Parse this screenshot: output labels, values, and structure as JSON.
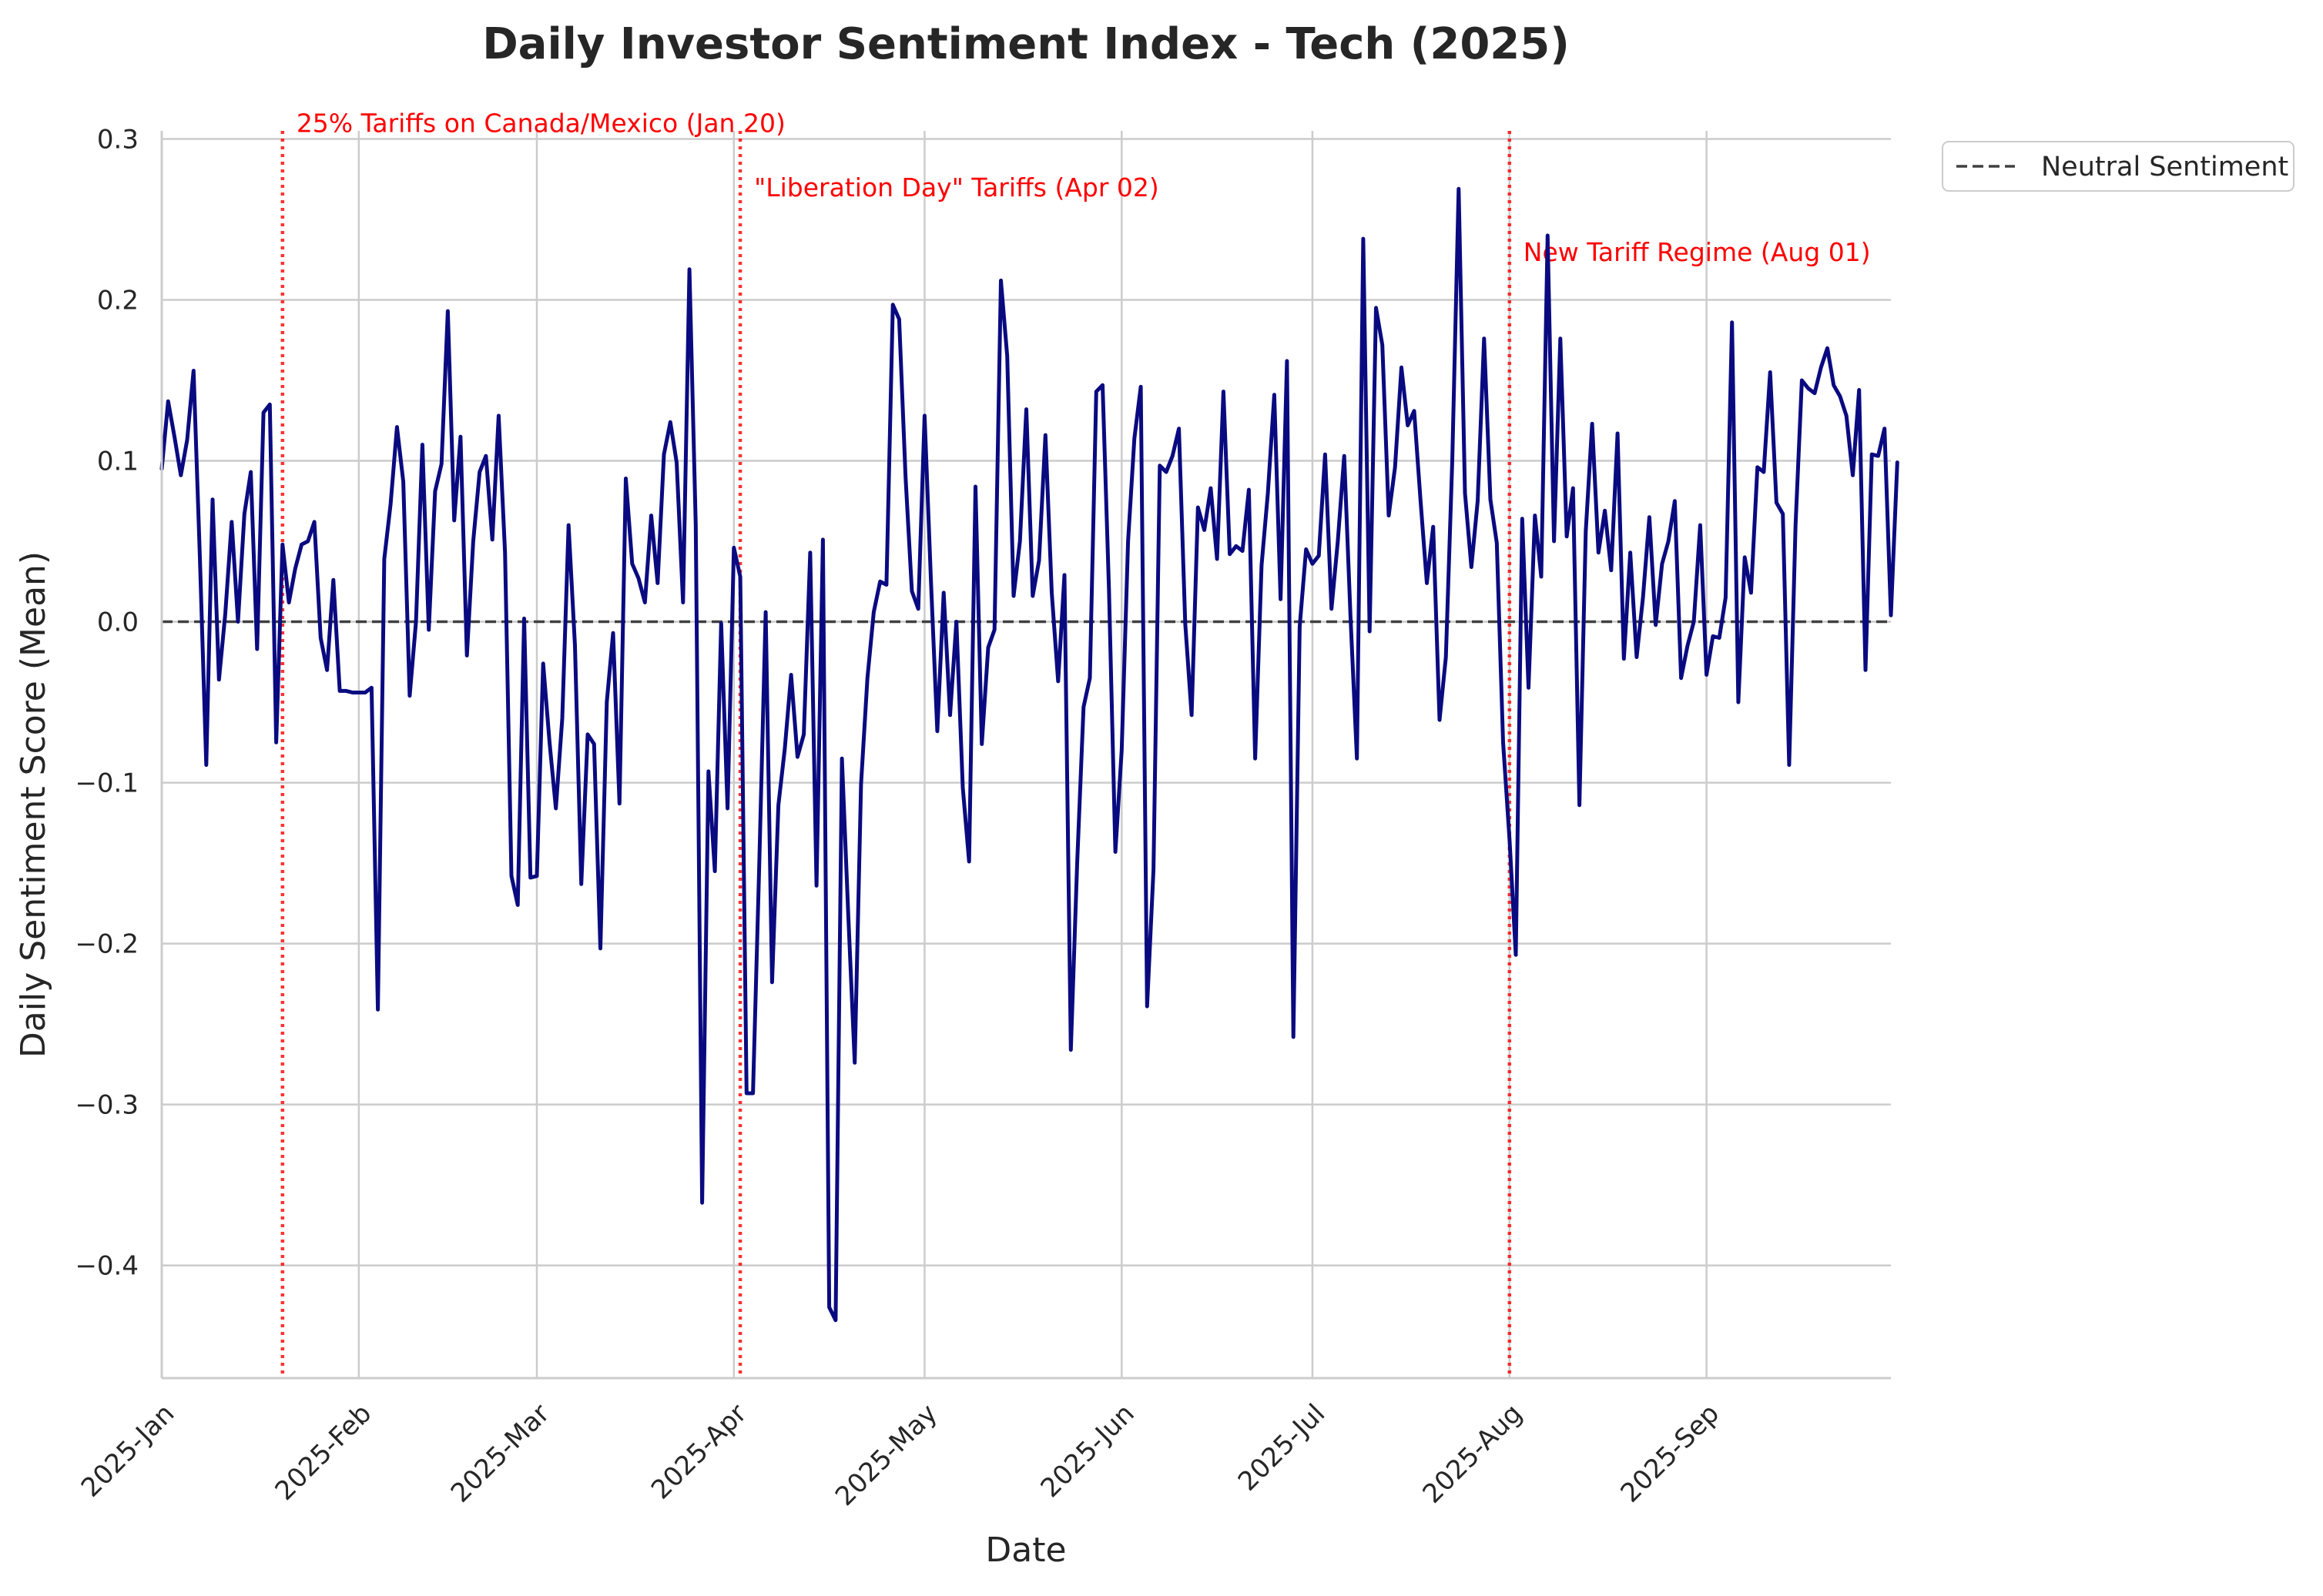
{
  "chart_data": {
    "type": "line",
    "title": "Daily Investor Sentiment Index - Tech (2025)",
    "xlabel": "Date",
    "ylabel": "Daily Sentiment Score (Mean)",
    "xlim": [
      "2025-01-01",
      "2025-09-30"
    ],
    "ylim": [
      -0.47,
      0.305
    ],
    "grid": true,
    "legend_placement": "outside-top-right",
    "x_ticks": [
      {
        "date": "2025-01-01",
        "label": "2025-Jan"
      },
      {
        "date": "2025-02-01",
        "label": "2025-Feb"
      },
      {
        "date": "2025-03-01",
        "label": "2025-Mar"
      },
      {
        "date": "2025-04-01",
        "label": "2025-Apr"
      },
      {
        "date": "2025-05-01",
        "label": "2025-May"
      },
      {
        "date": "2025-06-01",
        "label": "2025-Jun"
      },
      {
        "date": "2025-07-01",
        "label": "2025-Jul"
      },
      {
        "date": "2025-08-01",
        "label": "2025-Aug"
      },
      {
        "date": "2025-09-01",
        "label": "2025-Sep"
      }
    ],
    "y_ticks": [
      {
        "value": 0.3,
        "label": "0.3"
      },
      {
        "value": 0.2,
        "label": "0.2"
      },
      {
        "value": 0.1,
        "label": "0.1"
      },
      {
        "value": 0.0,
        "label": "0.0"
      },
      {
        "value": -0.1,
        "label": "−0.1"
      },
      {
        "value": -0.2,
        "label": "−0.2"
      },
      {
        "value": -0.3,
        "label": "−0.3"
      },
      {
        "value": -0.4,
        "label": "−0.4"
      }
    ],
    "reference_line": {
      "value": 0.0,
      "name": "Neutral Sentiment",
      "style": "dashed",
      "color": "#404040"
    },
    "events": [
      {
        "date": "2025-01-20",
        "label": "25% Tariffs on Canada/Mexico (Jan 20)",
        "label_y": 0.31
      },
      {
        "date": "2025-04-02",
        "label": "\"Liberation Day\" Tariffs (Apr 02)",
        "label_y": 0.27
      },
      {
        "date": "2025-08-01",
        "label": "New Tariff Regime (Aug 01)",
        "label_y": 0.23
      }
    ],
    "series": [
      {
        "color": "#0a0a80",
        "start_date": "2025-01-01",
        "values": [
          0.095,
          0.137,
          0.115,
          0.091,
          0.113,
          0.156,
          0.04,
          -0.089,
          0.076,
          -0.036,
          0.005,
          0.062,
          0.0,
          0.067,
          0.093,
          -0.017,
          0.13,
          0.135,
          -0.075,
          0.048,
          0.012,
          0.033,
          0.048,
          0.05,
          0.062,
          -0.01,
          -0.03,
          0.026,
          -0.043,
          -0.043,
          -0.044,
          -0.044,
          -0.044,
          -0.041,
          -0.241,
          0.039,
          0.073,
          0.121,
          0.087,
          -0.046,
          0.0,
          0.11,
          -0.005,
          0.081,
          0.098,
          0.193,
          0.063,
          0.115,
          -0.021,
          0.05,
          0.093,
          0.103,
          0.051,
          0.128,
          0.043,
          -0.158,
          -0.176,
          0.002,
          -0.159,
          -0.158,
          -0.026,
          -0.075,
          -0.116,
          -0.06,
          0.06,
          -0.015,
          -0.163,
          -0.07,
          -0.076,
          -0.203,
          -0.05,
          -0.007,
          -0.113,
          0.089,
          0.036,
          0.027,
          0.012,
          0.066,
          0.024,
          0.104,
          0.124,
          0.099,
          0.012,
          0.219,
          0.06,
          -0.361,
          -0.093,
          -0.155,
          -0.001,
          -0.116,
          0.046,
          0.028,
          -0.293,
          -0.293,
          -0.15,
          0.006,
          -0.224,
          -0.114,
          -0.079,
          -0.033,
          -0.084,
          -0.07,
          0.043,
          -0.164,
          0.051,
          -0.426,
          -0.434,
          -0.085,
          -0.183,
          -0.274,
          -0.101,
          -0.035,
          0.006,
          0.025,
          0.023,
          0.197,
          0.188,
          0.09,
          0.019,
          0.008,
          0.128,
          0.025,
          -0.068,
          0.018,
          -0.058,
          0.0,
          -0.103,
          -0.149,
          0.084,
          -0.076,
          -0.016,
          -0.005,
          0.212,
          0.165,
          0.016,
          0.05,
          0.132,
          0.016,
          0.038,
          0.116,
          0.018,
          -0.037,
          0.029,
          -0.266,
          -0.15,
          -0.053,
          -0.035,
          0.143,
          0.147,
          0.02,
          -0.143,
          -0.08,
          0.05,
          0.114,
          0.146,
          -0.239,
          -0.154,
          0.097,
          0.093,
          0.103,
          0.12,
          -0.001,
          -0.058,
          0.071,
          0.057,
          0.083,
          0.039,
          0.143,
          0.042,
          0.047,
          0.044,
          0.082,
          -0.085,
          0.035,
          0.08,
          0.141,
          0.014,
          0.162,
          -0.258,
          -0.003,
          0.045,
          0.036,
          0.041,
          0.104,
          0.008,
          0.05,
          0.103,
          0.003,
          -0.085,
          0.238,
          -0.006,
          0.195,
          0.172,
          0.066,
          0.096,
          0.158,
          0.122,
          0.131,
          0.076,
          0.024,
          0.059,
          -0.061,
          -0.022,
          0.1,
          0.269,
          0.08,
          0.034,
          0.075,
          0.176,
          0.076,
          0.049,
          -0.075,
          -0.135,
          -0.207,
          0.064,
          -0.041,
          0.066,
          0.028,
          0.24,
          0.05,
          0.176,
          0.053,
          0.083,
          -0.114,
          0.056,
          0.123,
          0.043,
          0.069,
          0.032,
          0.117,
          -0.023,
          0.043,
          -0.022,
          0.015,
          0.065,
          -0.002,
          0.036,
          0.05,
          0.075,
          -0.035,
          -0.015,
          0.0,
          0.06,
          -0.033,
          -0.009,
          -0.01,
          0.015,
          0.186,
          -0.05,
          0.04,
          0.018,
          0.096,
          0.093,
          0.155,
          0.074,
          0.067,
          -0.089,
          0.06,
          0.15,
          0.145,
          0.142,
          0.158,
          0.17,
          0.147,
          0.14,
          0.128,
          0.091,
          0.144,
          -0.03,
          0.104,
          0.103,
          0.12,
          0.004,
          0.099
        ]
      }
    ]
  }
}
